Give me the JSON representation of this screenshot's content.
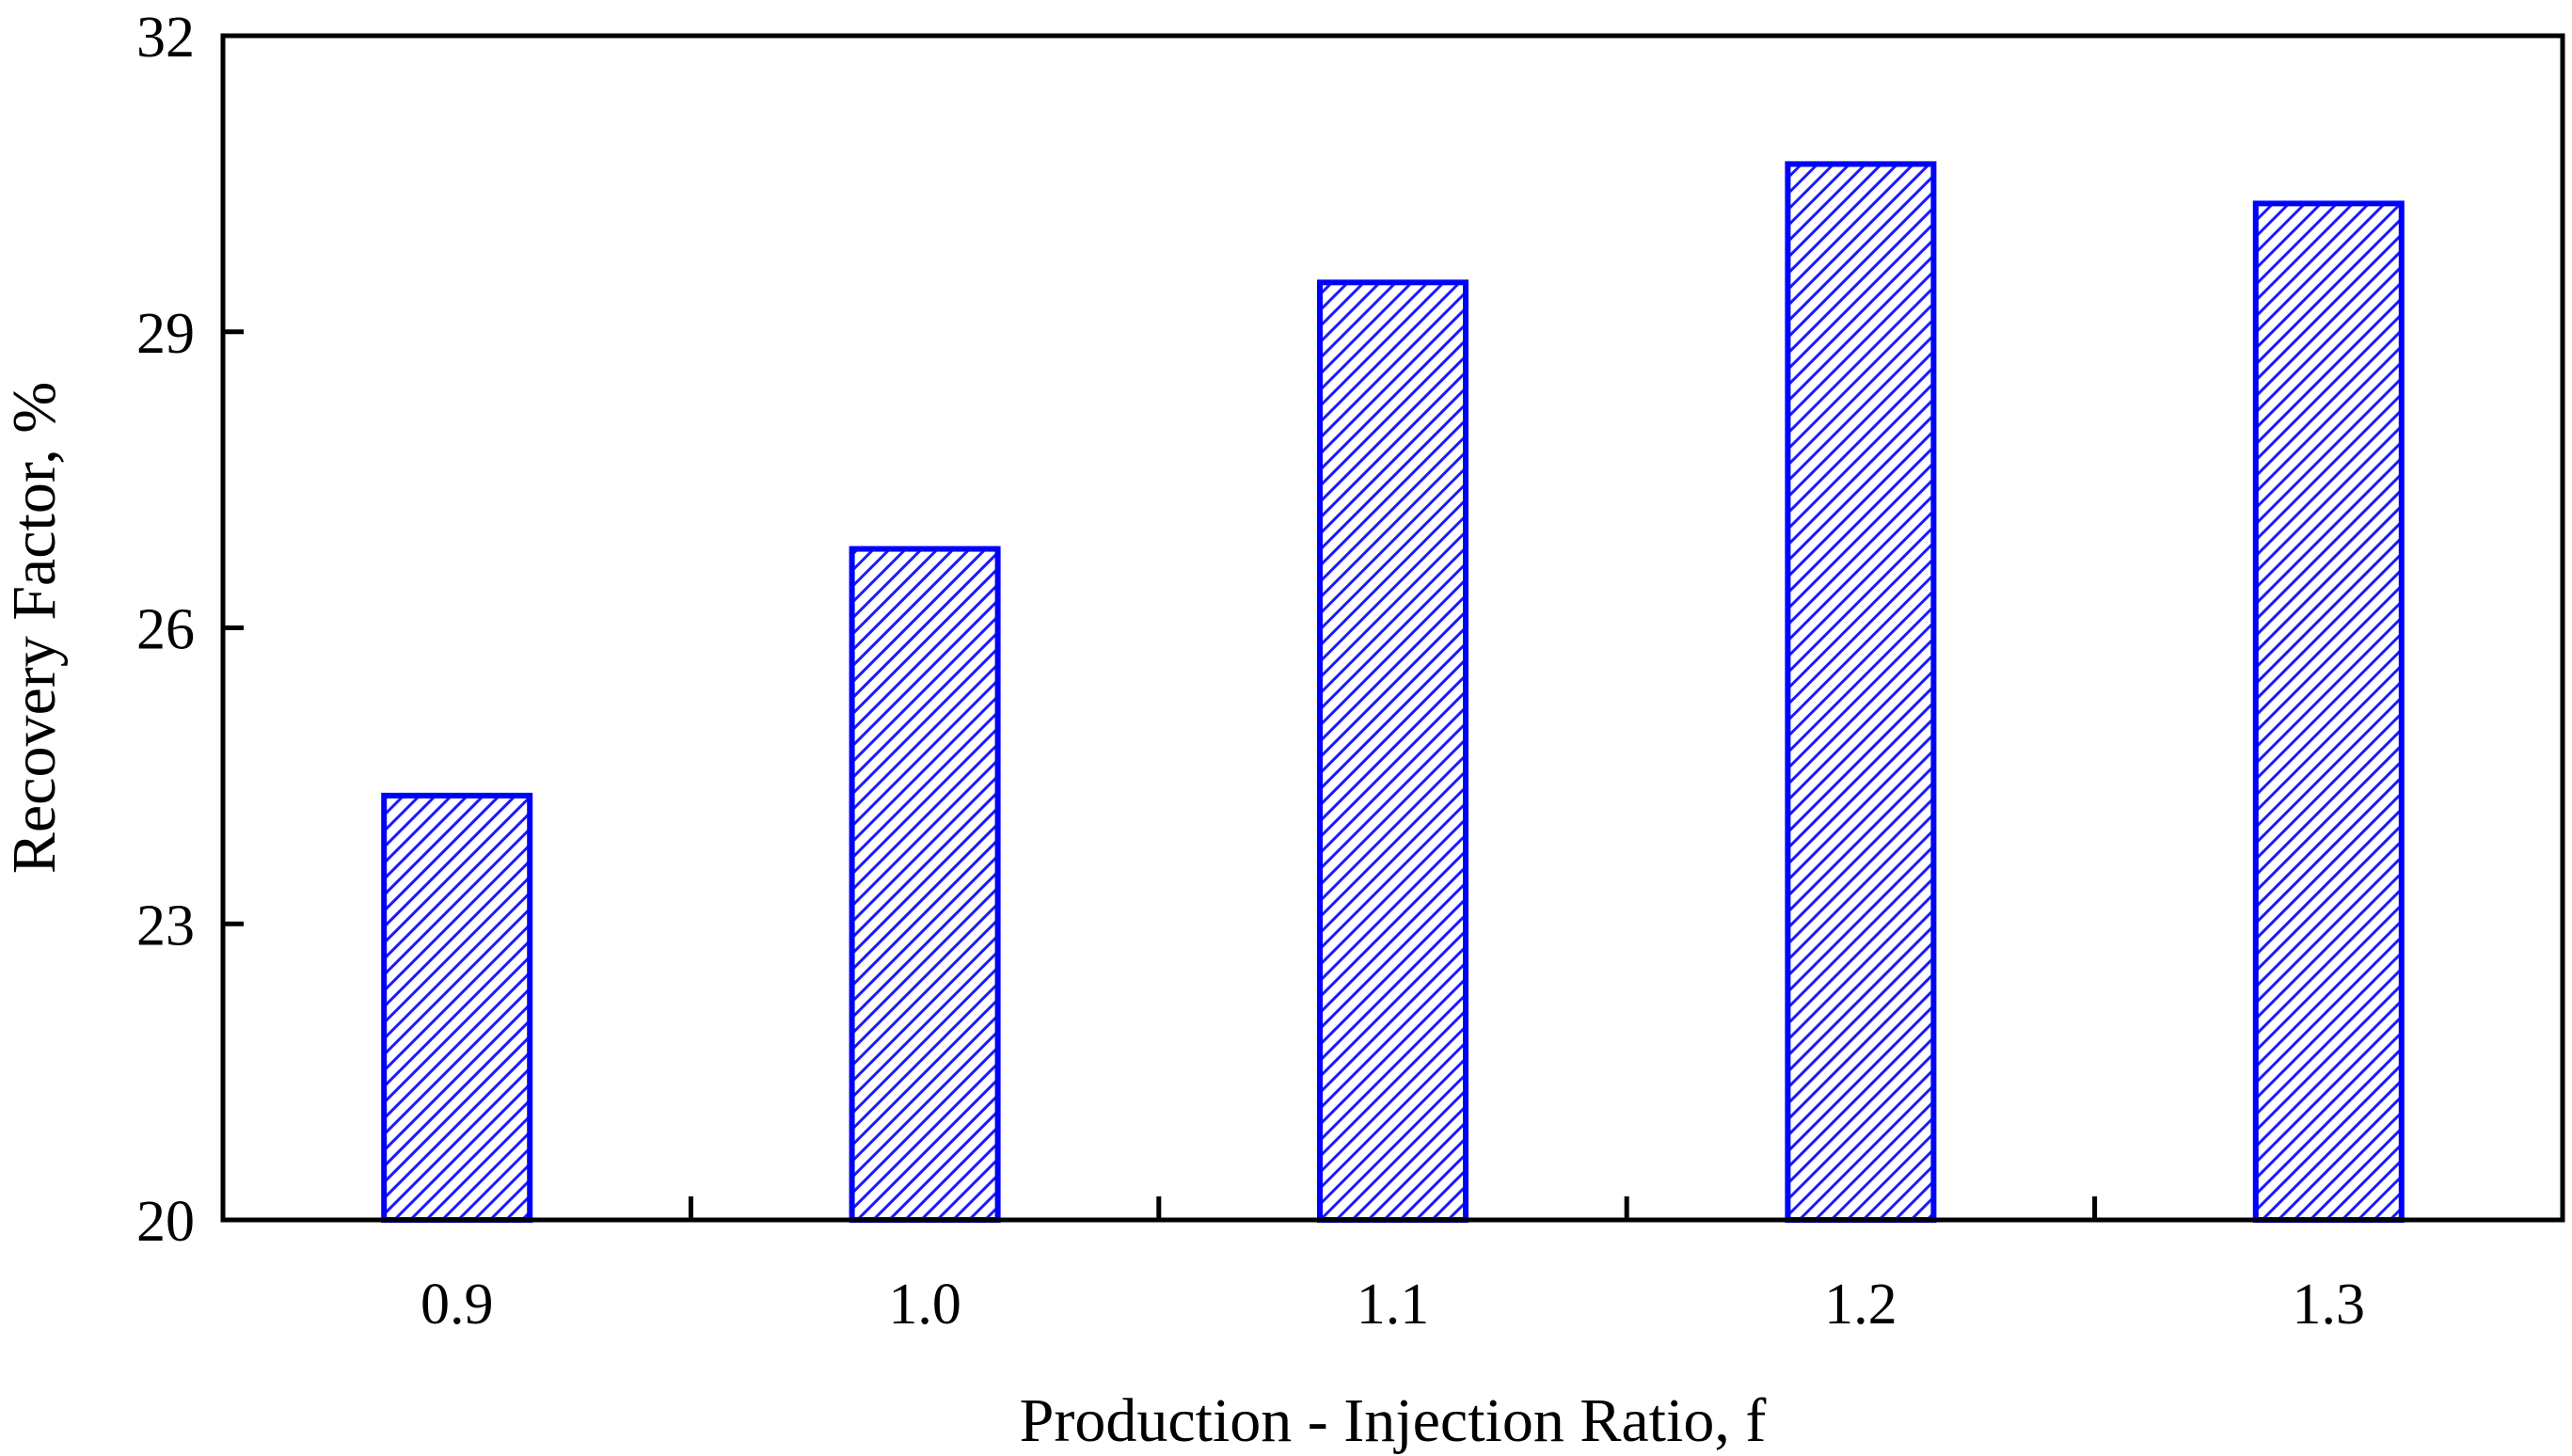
{
  "chart_data": {
    "type": "bar",
    "categories": [
      "0.9",
      "1.0",
      "1.1",
      "1.2",
      "1.3"
    ],
    "values": [
      24.3,
      26.8,
      29.5,
      30.7,
      30.3
    ],
    "xlabel": "Production - Injection Ratio, f",
    "ylabel": "Recovery Factor, %",
    "ylim": [
      20,
      32
    ],
    "yticks": [
      "20",
      "23",
      "26",
      "29",
      "32"
    ],
    "grid": false,
    "legend": "none",
    "bar_edge_color": "#0000ff",
    "bar_hatch_color": "#1a1aff",
    "bar_hatch": "diagonal"
  }
}
